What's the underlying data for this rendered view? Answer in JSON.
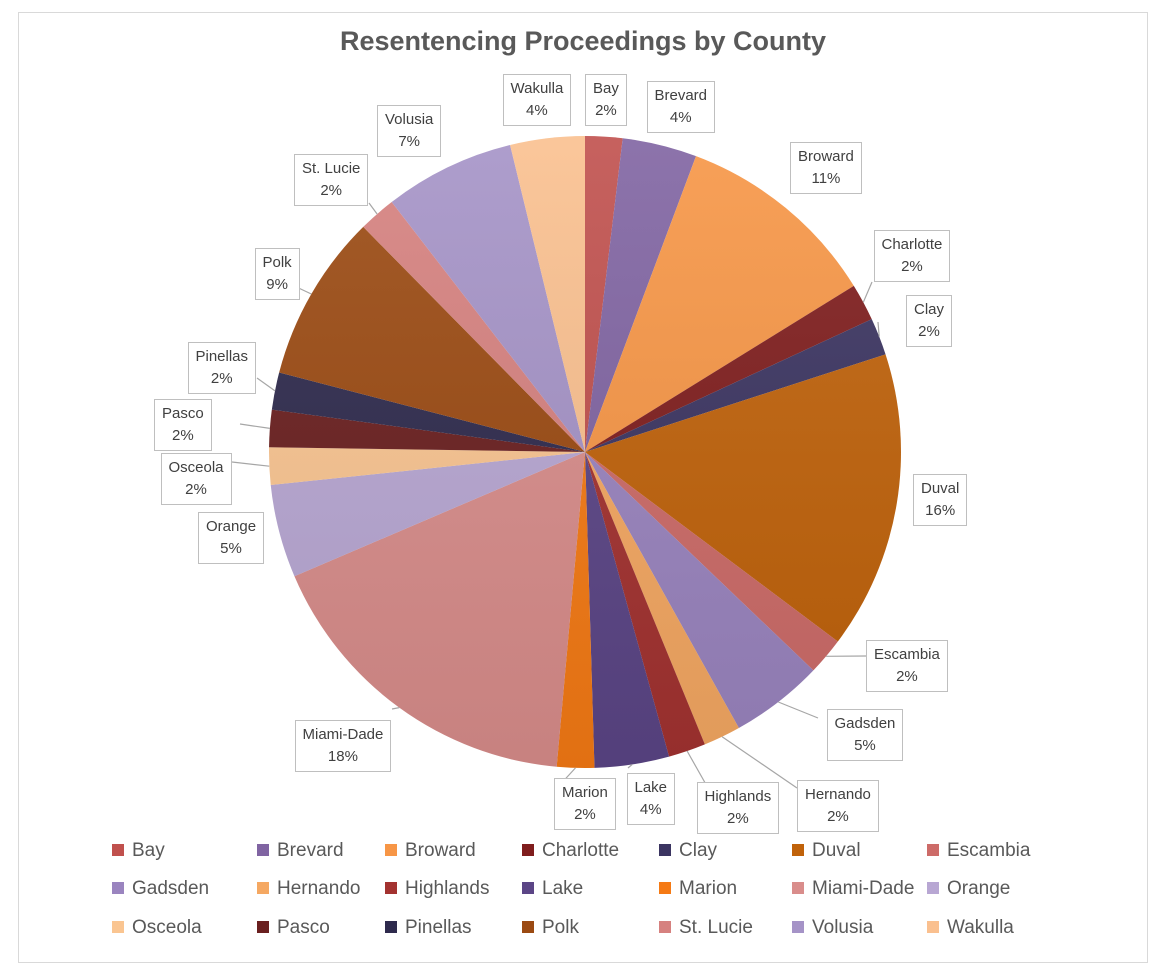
{
  "chart_data": {
    "type": "pie",
    "title": "Resentencing Proceedings by County",
    "categories": [
      "Bay",
      "Brevard",
      "Broward",
      "Charlotte",
      "Clay",
      "Duval",
      "Escambia",
      "Gadsden",
      "Hernando",
      "Highlands",
      "Lake",
      "Marion",
      "Miami-Dade",
      "Orange",
      "Osceola",
      "Pasco",
      "Pinellas",
      "Polk",
      "St. Lucie",
      "Volusia",
      "Wakulla"
    ],
    "values": [
      2,
      4,
      11,
      2,
      2,
      16,
      2,
      5,
      2,
      2,
      4,
      2,
      18,
      5,
      2,
      2,
      2,
      9,
      2,
      7,
      4
    ],
    "data_labels": [
      "2%",
      "4%",
      "11%",
      "2%",
      "2%",
      "16%",
      "2%",
      "5%",
      "2%",
      "2%",
      "4%",
      "2%",
      "18%",
      "5%",
      "2%",
      "2%",
      "2%",
      "9%",
      "2%",
      "7%",
      "4%"
    ],
    "colors": [
      "#c0504d",
      "#8064a2",
      "#f79646",
      "#7f1d1d",
      "#3b3461",
      "#c0620a",
      "#cd6b68",
      "#9a84bf",
      "#f5a862",
      "#a33230",
      "#5b4586",
      "#f57a14",
      "#d98d8b",
      "#b8a7d3",
      "#fac591",
      "#6a1f1f",
      "#2e2a4d",
      "#9b4a12",
      "#d6817f",
      "#a593c7",
      "#fac08f"
    ],
    "legend_position": "bottom",
    "start_angle_deg": 0,
    "direction": "clockwise"
  }
}
